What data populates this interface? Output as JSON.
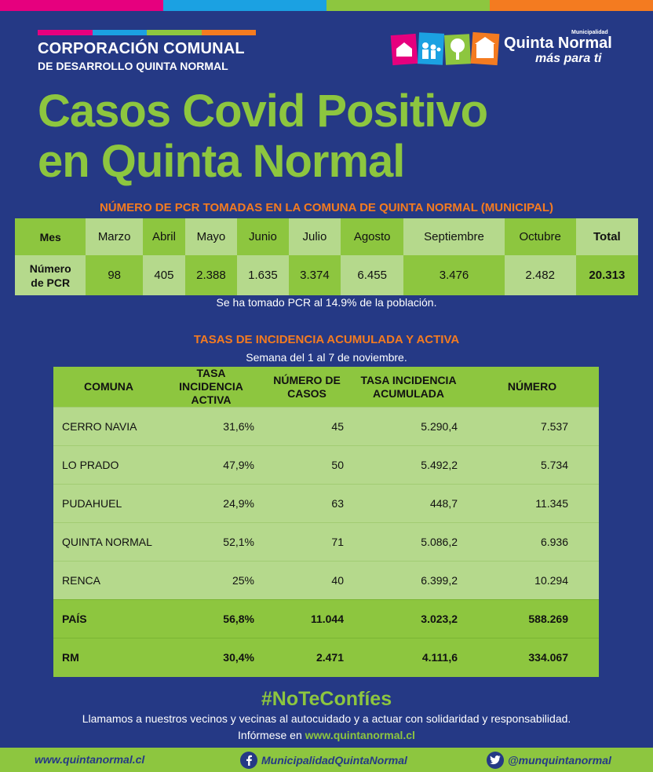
{
  "colors": {
    "background": "#253985",
    "green": "#8dc63f",
    "light_green": "#b5d98c",
    "orange": "#f47b20",
    "magenta": "#e6007e",
    "blue": "#1ba1e2"
  },
  "header": {
    "corp_line1": "CORPORACIÓN COMUNAL",
    "corp_line2": "DE DESARROLLO QUINTA NORMAL",
    "muni_small": "Municipalidad",
    "muni_name": "Quinta Normal",
    "muni_slogan": "más para ti"
  },
  "title_line1": "Casos Covid Positivo",
  "title_line2": "en Quinta Normal",
  "pcr": {
    "heading": "NÚMERO DE PCR TOMADAS EN LA COMUNA DE QUINTA NORMAL (MUNICIPAL)",
    "row_label_top": "Mes",
    "row_label_bottom_1": "Número",
    "row_label_bottom_2": "de PCR",
    "months": [
      "Marzo",
      "Abril",
      "Mayo",
      "Junio",
      "Julio",
      "Agosto",
      "Septiembre",
      "Octubre"
    ],
    "values": [
      "98",
      "405",
      "2.388",
      "1.635",
      "3.374",
      "6.455",
      "3.476",
      "2.482"
    ],
    "total_label": "Total",
    "total_value": "20.313",
    "note": "Se ha tomado PCR al 14.9% de la población."
  },
  "tasas": {
    "heading": "TASAS DE INCIDENCIA ACUMULADA Y ACTIVA",
    "subheading": "Semana del 1 al 7 de noviembre.",
    "columns": [
      "COMUNA",
      "TASA INCIDENCIA ACTIVA",
      "NÚMERO DE CASOS",
      "TASA INCIDENCIA ACUMULADA",
      "NÚMERO"
    ],
    "rows": [
      [
        "CERRO NAVIA",
        "31,6%",
        "45",
        "5.290,4",
        "7.537"
      ],
      [
        "LO PRADO",
        "47,9%",
        "50",
        "5.492,2",
        "5.734"
      ],
      [
        "PUDAHUEL",
        "24,9%",
        "63",
        "448,7",
        "11.345"
      ],
      [
        "QUINTA NORMAL",
        "52,1%",
        "71",
        "5.086,2",
        "6.936"
      ],
      [
        "RENCA",
        "25%",
        "40",
        "6.399,2",
        "10.294"
      ],
      [
        "PAÍS",
        "56,8%",
        "11.044",
        "3.023,2",
        "588.269"
      ],
      [
        "RM",
        "30,4%",
        "2.471",
        "4.111,6",
        "334.067"
      ]
    ]
  },
  "footer_msg": {
    "hashtag": "#NoTeConfíes",
    "line1": "Llamamos a nuestros vecinos y vecinas al autocuidado y a actuar con solidaridad y responsabilidad.",
    "line2_prefix": "Infórmese en ",
    "line2_url": "www.quintanormal.cl"
  },
  "footer": {
    "web": "www.quintanormal.cl",
    "facebook": "MunicipalidadQuintaNormal",
    "twitter": "@munquintanormal",
    "facebook_icon": "facebook-icon",
    "twitter_icon": "twitter-icon"
  }
}
